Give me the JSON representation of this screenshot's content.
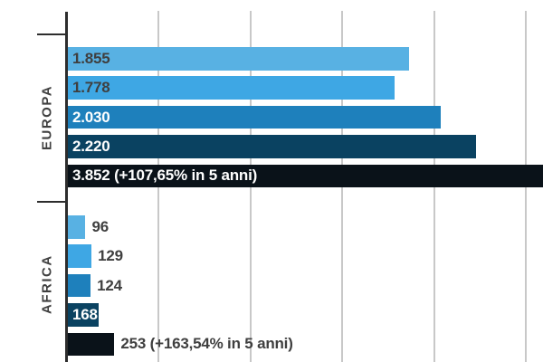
{
  "chart_data": {
    "type": "bar",
    "orientation": "horizontal",
    "title": "",
    "x_axis": {
      "gridline_step": 500,
      "gridlines_at": [
        500,
        1000,
        1500,
        2000,
        2500
      ],
      "tick_labels_visible": false,
      "visible_range": [
        0,
        2600
      ],
      "grid_on": true
    },
    "categories": [
      "EUROPA",
      "AFRICA"
    ],
    "groups": [
      {
        "label": "EUROPA",
        "bars": [
          {
            "value": 1855,
            "label": "1.855",
            "color": "#58b1e3",
            "label_position": "inside",
            "label_color": "#3f3f3f"
          },
          {
            "value": 1778,
            "label": "1.778",
            "color": "#3ea7e4",
            "label_position": "inside",
            "label_color": "#3f3f3f"
          },
          {
            "value": 2030,
            "label": "2.030",
            "color": "#1e80bc",
            "label_position": "inside",
            "label_color": "#ffffff"
          },
          {
            "value": 2220,
            "label": "2.220",
            "color": "#0a4261",
            "label_position": "inside",
            "label_color": "#ffffff"
          },
          {
            "value": 3852,
            "label": "3.852 (+107,65% in 5 anni)",
            "color": "#0a1219",
            "label_position": "inside",
            "label_color": "#ffffff"
          }
        ]
      },
      {
        "label": "AFRICA",
        "bars": [
          {
            "value": 96,
            "label": "96",
            "color": "#58b1e3",
            "label_position": "outside",
            "label_color": "#3f3f3f"
          },
          {
            "value": 129,
            "label": "129",
            "color": "#3ea7e4",
            "label_position": "outside",
            "label_color": "#3f3f3f"
          },
          {
            "value": 124,
            "label": "124",
            "color": "#1e80bc",
            "label_position": "outside",
            "label_color": "#3f3f3f"
          },
          {
            "value": 168,
            "label": "168",
            "color": "#0a4261",
            "label_position": "inside",
            "label_color": "#ffffff"
          },
          {
            "value": 253,
            "label": "253 (+163,54% in 5 anni)",
            "color": "#0a1219",
            "label_position": "outside",
            "label_color": "#3f3f3f"
          }
        ]
      }
    ],
    "colors": {
      "background": "#ffffff",
      "gridline": "#c8c8c8",
      "axis": "#2d2d2d",
      "category_text": "#3f3f3f"
    },
    "layout_hints": {
      "legend": "none",
      "bars_cropped_right_edge": true,
      "chart_cropped_bottom_edge": true
    }
  }
}
